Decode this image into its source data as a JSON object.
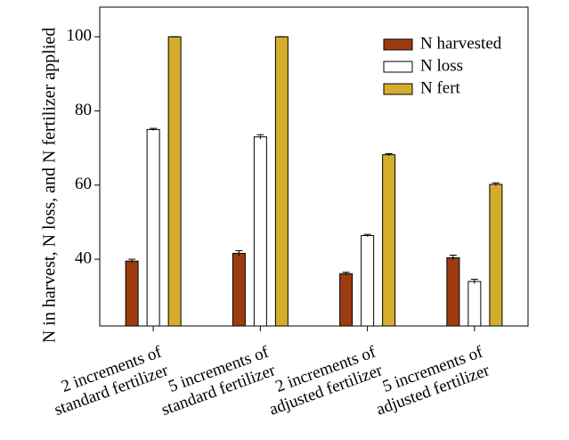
{
  "chart_data": {
    "type": "bar",
    "ylabel": "N in harvest, N loss, and N fertilizer applied",
    "ylim": [
      22,
      108
    ],
    "yticks": [
      40,
      60,
      80,
      100
    ],
    "categories": [
      [
        "2 increments of",
        "standard fertilizer"
      ],
      [
        "5 increments of",
        "standard fertilizer"
      ],
      [
        "2 increments of",
        "adjusted fertilizer"
      ],
      [
        "5 increments of",
        "adjusted fertilizer"
      ]
    ],
    "series": [
      {
        "name": "N harvested",
        "color": "#9c3b0f",
        "values": [
          39.5,
          41.6,
          36.1,
          40.4
        ],
        "errors": [
          0.5,
          0.7,
          0.4,
          0.7
        ]
      },
      {
        "name": "N loss",
        "color": "#ffffff",
        "values": [
          75.0,
          73.0,
          46.4,
          34.0
        ],
        "errors": [
          0.3,
          0.6,
          0.3,
          0.6
        ]
      },
      {
        "name": "N fert",
        "color": "#d4ad2d",
        "values": [
          100,
          100,
          68.2,
          60.2
        ],
        "errors": [
          0,
          0,
          0.3,
          0.4
        ]
      }
    ],
    "legend_position": "top-right",
    "grid": false
  }
}
